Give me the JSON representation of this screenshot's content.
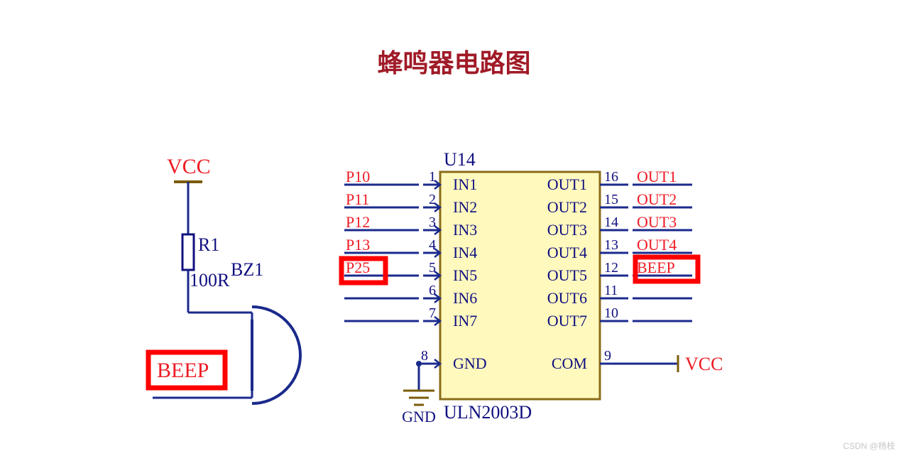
{
  "title": {
    "text": "蜂鸣器电路图",
    "color": "#a01a27"
  },
  "colors": {
    "wire": "#1a2a8c",
    "body": "#fff9bd",
    "bodyStroke": "#8a6d1a",
    "darkblue": "#101080",
    "red": "#ee1c25",
    "highlight": "#ff0000",
    "gnd": "#7a5c0a",
    "watermark": "#c7c7c7"
  },
  "font": {
    "pin": 22,
    "label": 26,
    "pinnum": 20
  },
  "left": {
    "vcc": "VCC",
    "r1_name": "R1",
    "r1_val": "100R",
    "bz1": "BZ1",
    "beep": "BEEP"
  },
  "ic": {
    "ref": "U14",
    "part": "ULN2003D",
    "left_nets": [
      "P10",
      "P11",
      "P12",
      "P13",
      "P25",
      "",
      "",
      ""
    ],
    "left_nums": [
      "1",
      "2",
      "3",
      "4",
      "5",
      "6",
      "7",
      "8"
    ],
    "left_names": [
      "IN1",
      "IN2",
      "IN3",
      "IN4",
      "IN5",
      "IN6",
      "IN7",
      "GND"
    ],
    "right_nets": [
      "OUT1",
      "OUT2",
      "OUT3",
      "OUT4",
      "BEEP",
      "",
      "",
      "VCC"
    ],
    "right_nums": [
      "16",
      "15",
      "14",
      "13",
      "12",
      "11",
      "10",
      "9"
    ],
    "right_names": [
      "OUT1",
      "OUT2",
      "OUT3",
      "OUT4",
      "OUT5",
      "OUT6",
      "OUT7",
      "COM"
    ],
    "gnd_label": "GND"
  },
  "watermark": "CSDN @杨枝"
}
